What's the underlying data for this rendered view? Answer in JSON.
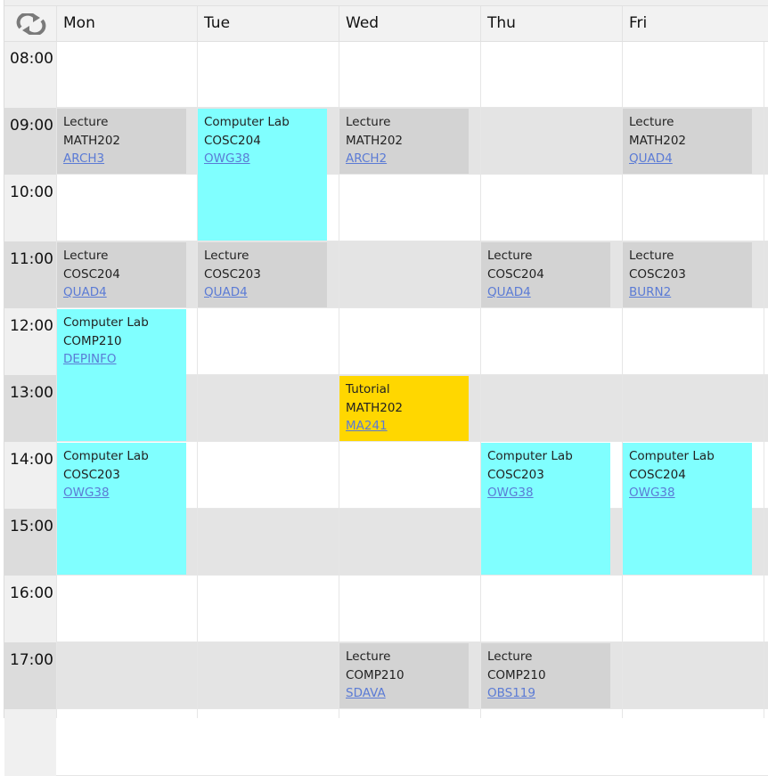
{
  "header": {
    "refresh_icon": "refresh-arrows-icon",
    "days": [
      "Mon",
      "Tue",
      "Wed",
      "Thu",
      "Fri"
    ]
  },
  "times": [
    "08:00",
    "09:00",
    "10:00",
    "11:00",
    "12:00",
    "13:00",
    "14:00",
    "15:00",
    "16:00",
    "17:00"
  ],
  "colors": {
    "lecture": "#d3d3d3",
    "lab": "#80ffff",
    "tutorial": "#ffd700",
    "link": "#5b7bd5"
  },
  "events": [
    {
      "day": 0,
      "start": "09:00",
      "hours": 1,
      "type": "Lecture",
      "course": "MATH202",
      "room": "ARCH3",
      "kind": "lecture"
    },
    {
      "day": 1,
      "start": "09:00",
      "hours": 2,
      "type": "Computer Lab",
      "course": "COSC204",
      "room": "OWG38",
      "kind": "lab"
    },
    {
      "day": 2,
      "start": "09:00",
      "hours": 1,
      "type": "Lecture",
      "course": "MATH202",
      "room": "ARCH2",
      "kind": "lecture"
    },
    {
      "day": 4,
      "start": "09:00",
      "hours": 1,
      "type": "Lecture",
      "course": "MATH202",
      "room": "QUAD4",
      "kind": "lecture"
    },
    {
      "day": 0,
      "start": "11:00",
      "hours": 1,
      "type": "Lecture",
      "course": "COSC204",
      "room": "QUAD4",
      "kind": "lecture"
    },
    {
      "day": 1,
      "start": "11:00",
      "hours": 1,
      "type": "Lecture",
      "course": "COSC203",
      "room": "QUAD4",
      "kind": "lecture"
    },
    {
      "day": 3,
      "start": "11:00",
      "hours": 1,
      "type": "Lecture",
      "course": "COSC204",
      "room": "QUAD4",
      "kind": "lecture"
    },
    {
      "day": 4,
      "start": "11:00",
      "hours": 1,
      "type": "Lecture",
      "course": "COSC203",
      "room": "BURN2",
      "kind": "lecture"
    },
    {
      "day": 0,
      "start": "12:00",
      "hours": 2,
      "type": "Computer Lab",
      "course": "COMP210",
      "room": "DEPINFO",
      "kind": "lab"
    },
    {
      "day": 2,
      "start": "13:00",
      "hours": 1,
      "type": "Tutorial",
      "course": "MATH202",
      "room": "MA241",
      "kind": "tutorial"
    },
    {
      "day": 0,
      "start": "14:00",
      "hours": 2,
      "type": "Computer Lab",
      "course": "COSC203",
      "room": "OWG38",
      "kind": "lab"
    },
    {
      "day": 3,
      "start": "14:00",
      "hours": 2,
      "type": "Computer Lab",
      "course": "COSC203",
      "room": "OWG38",
      "kind": "lab"
    },
    {
      "day": 4,
      "start": "14:00",
      "hours": 2,
      "type": "Computer Lab",
      "course": "COSC204",
      "room": "OWG38",
      "kind": "lab"
    },
    {
      "day": 2,
      "start": "17:00",
      "hours": 1,
      "type": "Lecture",
      "course": "COMP210",
      "room": "SDAVA",
      "kind": "lecture"
    },
    {
      "day": 3,
      "start": "17:00",
      "hours": 1,
      "type": "Lecture",
      "course": "COMP210",
      "room": "OBS119",
      "kind": "lecture"
    }
  ]
}
